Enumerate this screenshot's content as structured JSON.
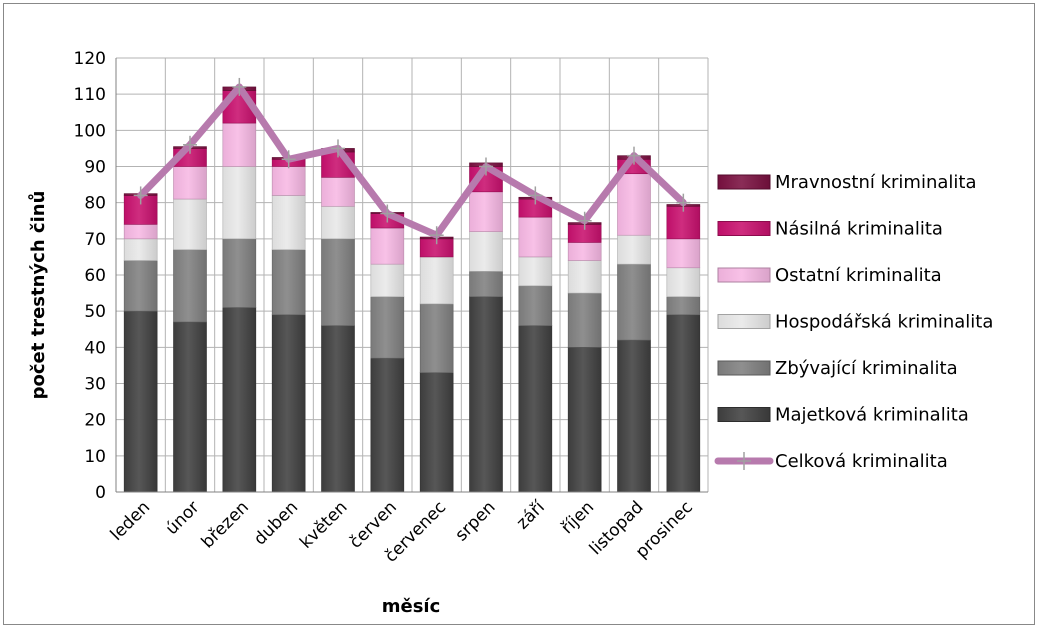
{
  "chart_data": {
    "type": "bar",
    "stacked": true,
    "categories": [
      "leden",
      "únor",
      "březen",
      "duben",
      "květen",
      "červen",
      "červenec",
      "srpen",
      "září",
      "říjen",
      "listopad",
      "prosinec"
    ],
    "series": [
      {
        "name": "Majetková kriminalita",
        "values": [
          50,
          47,
          51,
          49,
          46,
          37,
          33,
          54,
          46,
          40,
          42,
          49
        ],
        "color": "#404040"
      },
      {
        "name": "Zbývající kriminalita",
        "values": [
          14,
          20,
          19,
          18,
          24,
          17,
          19,
          7,
          11,
          15,
          21,
          5
        ],
        "color": "#808080"
      },
      {
        "name": "Hospodářská kriminalita",
        "values": [
          6,
          14,
          20,
          15,
          9,
          9,
          13,
          11,
          8,
          9,
          8,
          8
        ],
        "color": "#e8e8e8"
      },
      {
        "name": "Ostatní kriminalita",
        "values": [
          4,
          9,
          12,
          8,
          8,
          10,
          0,
          11,
          11,
          5,
          17,
          8
        ],
        "color": "#f7b8e4"
      },
      {
        "name": "Násilná kriminalita",
        "values": [
          8,
          5,
          9,
          2,
          7,
          4,
          5,
          7,
          5,
          5,
          4,
          9
        ],
        "color": "#c8106e"
      },
      {
        "name": "Mravnostní kriminalita",
        "values": [
          0.5,
          0.5,
          1,
          0.5,
          1,
          0.3,
          0.5,
          1,
          0.5,
          0.5,
          1,
          0.5
        ],
        "color": "#7a1040"
      }
    ],
    "line": {
      "name": "Celková kriminalita",
      "values": [
        82,
        96,
        112,
        92,
        95,
        77,
        71,
        90,
        82,
        75,
        93,
        80
      ],
      "color": "#b77aad"
    },
    "xlabel": "měsíc",
    "ylabel": "počet trestných činů",
    "ylim": [
      0,
      120
    ],
    "yticks": [
      0,
      10,
      20,
      30,
      40,
      50,
      60,
      70,
      80,
      90,
      100,
      110,
      120
    ],
    "grid": true,
    "legend_position": "right",
    "legend_order": [
      "Mravnostní kriminalita",
      "Násilná kriminalita",
      "Ostatní kriminalita",
      "Hospodářská kriminalita",
      "Zbývající kriminalita",
      "Majetková kriminalita",
      "Celková kriminalita"
    ]
  }
}
